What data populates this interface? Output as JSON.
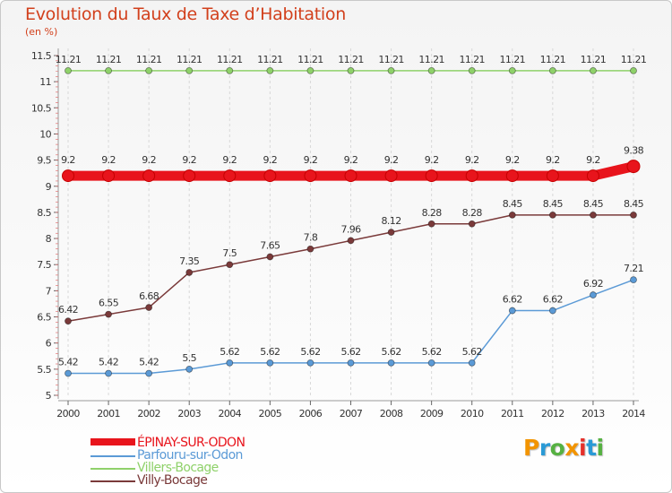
{
  "header": {
    "title": "Evolution du Taux de Taxe d’Habitation",
    "subtitle": "(en %)"
  },
  "brand": {
    "text": "Proxiti",
    "colors": [
      "#f29400",
      "#2a9ad6",
      "#56b142",
      "#f29400",
      "#e5302a",
      "#2a9ad6",
      "#56b142"
    ]
  },
  "chart_data": {
    "type": "line",
    "title": "Evolution du Taux de Taxe d’Habitation",
    "subtitle": "(en %)",
    "xlabel": "",
    "ylabel": "",
    "x": [
      "2000",
      "2001",
      "2002",
      "2003",
      "2004",
      "2005",
      "2006",
      "2007",
      "2008",
      "2009",
      "2010",
      "2011",
      "2012",
      "2013",
      "2014"
    ],
    "ylim": [
      5,
      11.5
    ],
    "yticks": [
      "5",
      "5.5",
      "6",
      "6.5",
      "7",
      "7.5",
      "8",
      "8.5",
      "9",
      "9.5",
      "10",
      "10.5",
      "11",
      "11.5"
    ],
    "legend_position": "bottom-left",
    "series": [
      {
        "name": "ÉPINAY-SUR-ODON",
        "color": "#e8141c",
        "values": [
          9.2,
          9.2,
          9.2,
          9.2,
          9.2,
          9.2,
          9.2,
          9.2,
          9.2,
          9.2,
          9.2,
          9.2,
          9.2,
          9.2,
          9.38
        ],
        "labels": [
          "9.2",
          "9.2",
          "9.2",
          "9.2",
          "9.2",
          "9.2",
          "9.2",
          "9.2",
          "9.2",
          "9.2",
          "9.2",
          "9.2",
          "9.2",
          "9.2",
          "9.38"
        ]
      },
      {
        "name": "Parfouru-sur-Odon",
        "color": "#5b9ad6",
        "values": [
          5.42,
          5.42,
          5.42,
          5.5,
          5.62,
          5.62,
          5.62,
          5.62,
          5.62,
          5.62,
          5.62,
          6.62,
          6.62,
          6.92,
          7.21
        ],
        "labels": [
          "5.42",
          "5.42",
          "5.42",
          "5.5",
          "5.62",
          "5.62",
          "5.62",
          "5.62",
          "5.62",
          "5.62",
          "5.62",
          "6.62",
          "6.62",
          "6.92",
          "7.21"
        ]
      },
      {
        "name": "Villers-Bocage",
        "color": "#8fd16a",
        "values": [
          11.21,
          11.21,
          11.21,
          11.21,
          11.21,
          11.21,
          11.21,
          11.21,
          11.21,
          11.21,
          11.21,
          11.21,
          11.21,
          11.21,
          11.21
        ],
        "labels": [
          "11.21",
          "11.21",
          "11.21",
          "11.21",
          "11.21",
          "11.21",
          "11.21",
          "11.21",
          "11.21",
          "11.21",
          "11.21",
          "11.21",
          "11.21",
          "11.21",
          "11.21"
        ]
      },
      {
        "name": "Villy-Bocage",
        "color": "#7a3a3a",
        "values": [
          6.42,
          6.55,
          6.68,
          7.35,
          7.5,
          7.65,
          7.8,
          7.96,
          8.12,
          8.28,
          8.28,
          8.45,
          8.45,
          8.45,
          8.45
        ],
        "labels": [
          "6.42",
          "6.55",
          "6.68",
          "7.35",
          "7.5",
          "7.65",
          "7.8",
          "7.96",
          "8.12",
          "8.28",
          "8.28",
          "8.45",
          "8.45",
          "8.45",
          "8.45"
        ]
      }
    ]
  }
}
